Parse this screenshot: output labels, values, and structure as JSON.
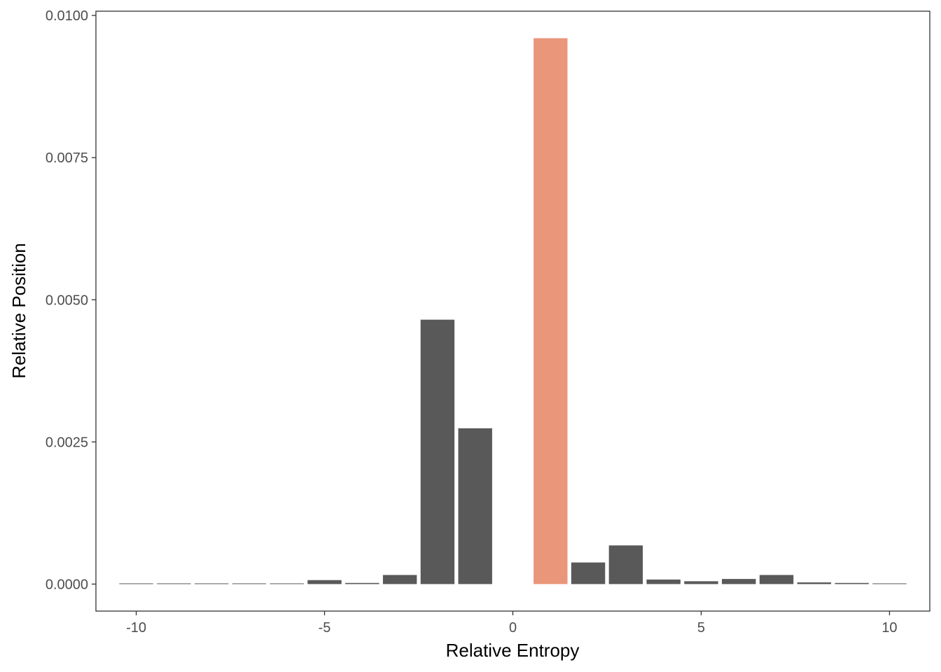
{
  "chart_data": {
    "type": "bar",
    "title": "",
    "xlabel": "Relative Entropy",
    "ylabel": "Relative Position",
    "xlim": [
      -11.07,
      11.07
    ],
    "ylim": [
      -0.000475,
      0.010075
    ],
    "x_ticks": [
      -10,
      -5,
      0,
      5,
      10
    ],
    "x_tick_labels": [
      "-10",
      "-5",
      "0",
      "5",
      "10"
    ],
    "y_ticks": [
      0,
      0.0025,
      0.005,
      0.0075,
      0.01
    ],
    "y_tick_labels": [
      "0.0000",
      "0.0025",
      "0.0050",
      "0.0075",
      "0.0100"
    ],
    "grid": false,
    "bar_color": "#595959",
    "highlight_color": "#E9967A",
    "bars": [
      {
        "x": -10,
        "value": 1e-05,
        "highlight": false
      },
      {
        "x": -9,
        "value": 1e-05,
        "highlight": false
      },
      {
        "x": -8,
        "value": 1e-05,
        "highlight": false
      },
      {
        "x": -7,
        "value": 1e-05,
        "highlight": false
      },
      {
        "x": -6,
        "value": 1e-05,
        "highlight": false
      },
      {
        "x": -5,
        "value": 7e-05,
        "highlight": false
      },
      {
        "x": -4,
        "value": 2e-05,
        "highlight": false
      },
      {
        "x": -3,
        "value": 0.00016,
        "highlight": false
      },
      {
        "x": -2,
        "value": 0.00465,
        "highlight": false
      },
      {
        "x": -1,
        "value": 0.00274,
        "highlight": false
      },
      {
        "x": 1,
        "value": 0.0096,
        "highlight": true
      },
      {
        "x": 2,
        "value": 0.00038,
        "highlight": false
      },
      {
        "x": 3,
        "value": 0.00068,
        "highlight": false
      },
      {
        "x": 4,
        "value": 8e-05,
        "highlight": false
      },
      {
        "x": 5,
        "value": 5e-05,
        "highlight": false
      },
      {
        "x": 6,
        "value": 9e-05,
        "highlight": false
      },
      {
        "x": 7,
        "value": 0.00016,
        "highlight": false
      },
      {
        "x": 8,
        "value": 3e-05,
        "highlight": false
      },
      {
        "x": 9,
        "value": 2e-05,
        "highlight": false
      },
      {
        "x": 10,
        "value": 1e-05,
        "highlight": false
      }
    ]
  }
}
